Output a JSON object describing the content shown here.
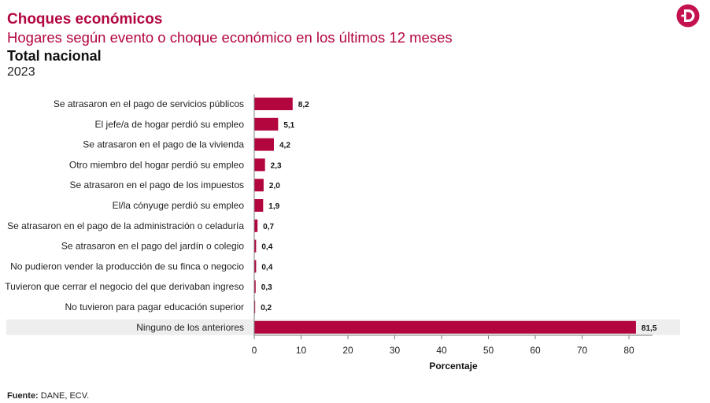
{
  "header": {
    "title": "Choques económicos",
    "subtitle": "Hogares según evento o choque económico en los últimos 12 meses",
    "scope": "Total nacional",
    "year": "2023"
  },
  "logo": {
    "icon": "dane-logo-icon",
    "color": "#c4114f"
  },
  "footer": {
    "source_label": "Fuente:",
    "source_text": "DANE, ECV."
  },
  "colors": {
    "bar": "#b3063f",
    "highlight_band": "#eeeeee",
    "title": "#b3063f"
  },
  "chart_data": {
    "type": "bar",
    "orientation": "horizontal",
    "categories": [
      "Se atrasaron en el pago de servicios públicos",
      "El jefe/a de hogar perdió su empleo",
      "Se atrasaron en el pago de la vivienda",
      "Otro miembro del hogar perdió su empleo",
      "Se atrasaron en el pago de los impuestos",
      "El/la cónyuge perdió su empleo",
      "Se atrasaron en el pago de la  administración o celaduría",
      "Se atrasaron en el pago del jardín o colegio",
      "No pudieron vender la producción de su finca o negocio",
      "Tuvieron que cerrar el negocio del que derivaban ingreso",
      "No tuvieron para pagar educación superior",
      "Ninguno de los anteriores"
    ],
    "values": [
      8.2,
      5.1,
      4.2,
      2.3,
      2.0,
      1.9,
      0.7,
      0.4,
      0.4,
      0.3,
      0.2,
      81.5
    ],
    "value_labels": [
      "8,2",
      "5,1",
      "4,2",
      "2,3",
      "2,0",
      "1,9",
      "0,7",
      "0,4",
      "0,4",
      "0,3",
      "0,2",
      "81,5"
    ],
    "xlabel": "Porcentaje",
    "xlim": [
      0,
      85
    ],
    "xticks": [
      0,
      10,
      20,
      30,
      40,
      50,
      60,
      70,
      80
    ],
    "highlighted_category": "Ninguno de los anteriores",
    "grid": false,
    "legend": "none"
  }
}
